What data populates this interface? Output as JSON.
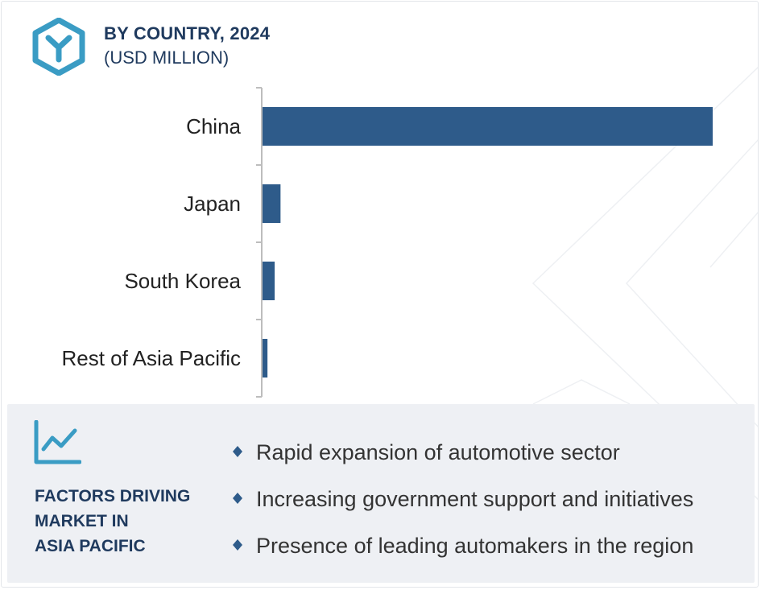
{
  "header": {
    "title": "BY COUNTRY, 2024",
    "subtitle": "(USD MILLION)",
    "logo_icon": "hexagon-y-logo-icon"
  },
  "colors": {
    "bar": "#2e5b8a",
    "axis": "#bdbdbd",
    "accent": "#3a9cc4",
    "heading": "#1f3a5e",
    "panel": "#eef0f4"
  },
  "chart_data": {
    "type": "bar",
    "orientation": "horizontal",
    "title": "BY COUNTRY, 2024",
    "subtitle": "(USD MILLION)",
    "categories": [
      "China",
      "Japan",
      "South Korea",
      "Rest of Asia Pacific"
    ],
    "values": [
      100,
      4,
      2.7,
      1.1
    ],
    "value_scale_note": "relative",
    "xlim": [
      0,
      100
    ],
    "grid": false,
    "legend": "none"
  },
  "factors": {
    "icon": "line-chart-icon",
    "heading_lines": [
      "FACTORS DRIVING",
      "MARKET IN",
      "ASIA PACIFIC"
    ],
    "items": [
      "Rapid expansion of automotive sector",
      "Increasing government support and initiatives",
      "Presence of leading automakers in the region"
    ],
    "bullet_icon": "diamond-bullet-icon"
  }
}
